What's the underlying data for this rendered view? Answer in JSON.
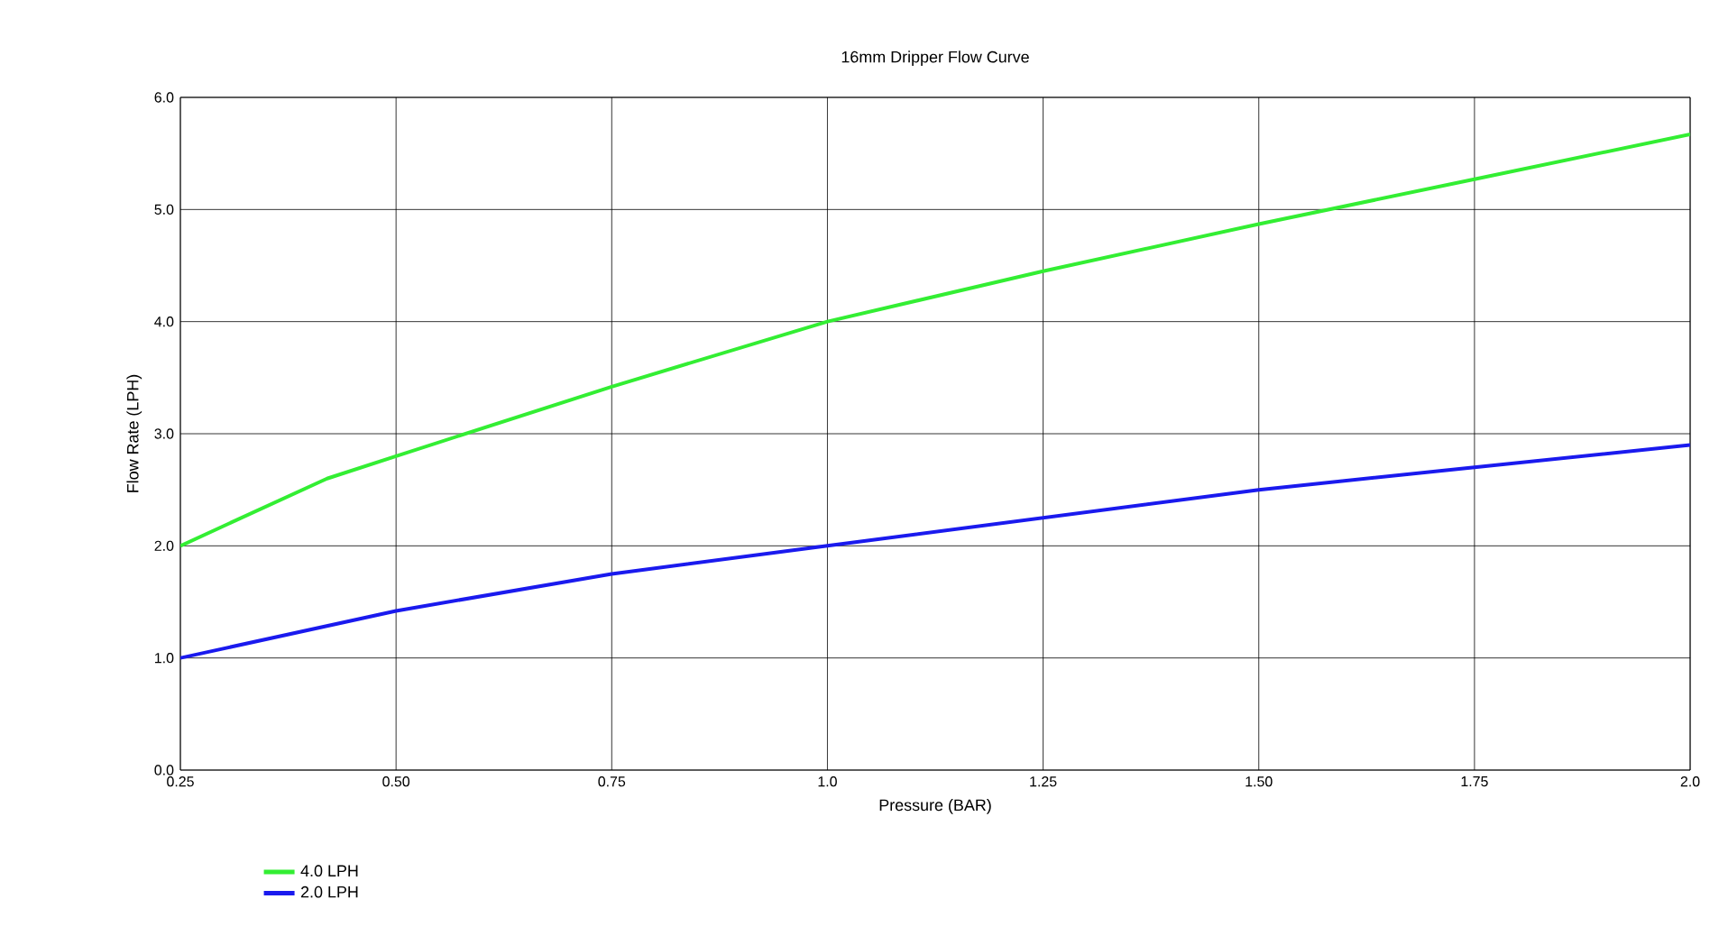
{
  "chart_data": {
    "type": "line",
    "title": "16mm Dripper Flow Curve",
    "xlabel": "Pressure (BAR)",
    "ylabel": "Flow Rate (LPH)",
    "xlim": [
      0.25,
      2.0
    ],
    "ylim": [
      0,
      6
    ],
    "xticks": [
      0.25,
      {
        "value": 0.5,
        "label": "0.50"
      },
      0.75,
      {
        "value": 1.0,
        "label": "1.0"
      },
      1.25,
      {
        "value": 1.5,
        "label": "1.50"
      },
      1.75,
      {
        "value": 2.0,
        "label": "2.0"
      }
    ],
    "yticks": [
      {
        "value": 0,
        "label": "0.0"
      },
      {
        "value": 1,
        "label": "1.0"
      },
      {
        "value": 2,
        "label": "2.0"
      },
      {
        "value": 3,
        "label": "3.0"
      },
      {
        "value": 4,
        "label": "4.0"
      },
      {
        "value": 5,
        "label": "5.0"
      },
      {
        "value": 6,
        "label": "6.0"
      }
    ],
    "grid": true,
    "legend": "bottom left",
    "marker": "none",
    "line_style": "solid",
    "series": [
      {
        "name": "4.0  LPH",
        "color": "#33ee33",
        "x": [
          0.25,
          0.42,
          0.5,
          0.75,
          1.0,
          1.25,
          1.5,
          1.75,
          2.0
        ],
        "values": [
          2.0,
          2.6,
          2.8,
          3.42,
          4.0,
          4.45,
          4.87,
          5.27,
          5.67
        ]
      },
      {
        "name": "2.0  LPH",
        "color": "#1a1aee",
        "x": [
          0.25,
          0.5,
          0.75,
          1.0,
          1.25,
          1.5,
          1.75,
          2.0
        ],
        "values": [
          1.0,
          1.42,
          1.75,
          2.0,
          2.25,
          2.5,
          2.7,
          2.9
        ]
      }
    ]
  }
}
